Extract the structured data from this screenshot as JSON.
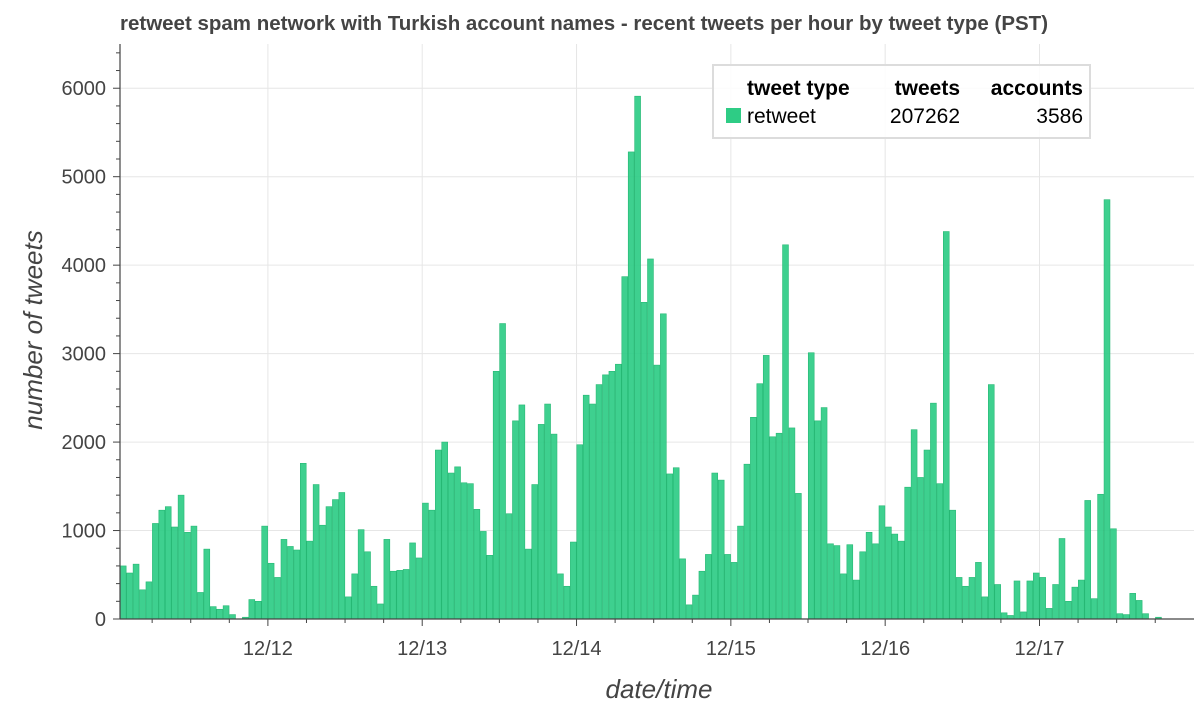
{
  "chart_data": {
    "type": "bar",
    "title": "retweet spam network with Turkish account names - recent tweets per hour by tweet type (PST)",
    "xlabel": "date/time",
    "ylabel": "number of tweets",
    "ylim": [
      0,
      6500
    ],
    "yticks": [
      "0",
      "1000",
      "2000",
      "3000",
      "4000",
      "5000",
      "6000"
    ],
    "xticks": [
      "12/12",
      "12/13",
      "12/14",
      "12/15",
      "12/16",
      "12/17"
    ],
    "grid": true,
    "legend_position": "top-right",
    "legend": {
      "headers": [
        "tweet type",
        "tweets",
        "accounts"
      ],
      "rows": [
        {
          "type": "retweet",
          "tweets": "207262",
          "accounts": "3586",
          "color": "#2ecc85"
        }
      ]
    },
    "bar_color": "#2ecc85",
    "x_start": "12/11 01:00",
    "x_interval": "1 hour",
    "series": [
      {
        "name": "retweet",
        "values": [
          600,
          520,
          620,
          330,
          420,
          1080,
          1230,
          1270,
          1040,
          1400,
          980,
          1050,
          300,
          790,
          140,
          110,
          150,
          50,
          0,
          20,
          220,
          200,
          1050,
          630,
          470,
          900,
          820,
          780,
          1760,
          880,
          1520,
          1060,
          1270,
          1350,
          1430,
          250,
          510,
          1010,
          760,
          370,
          170,
          900,
          540,
          550,
          560,
          860,
          690,
          1310,
          1230,
          1910,
          2000,
          1650,
          1720,
          1540,
          1530,
          1240,
          990,
          720,
          2800,
          3340,
          1190,
          2240,
          2420,
          790,
          1520,
          2200,
          2430,
          2090,
          510,
          370,
          870,
          1970,
          2530,
          2430,
          2650,
          2760,
          2800,
          2880,
          3870,
          5280,
          5910,
          3580,
          4070,
          2870,
          3450,
          1640,
          1710,
          680,
          160,
          270,
          540,
          730,
          1650,
          1570,
          730,
          640,
          1050,
          1750,
          2280,
          2660,
          2980,
          2060,
          2100,
          4230,
          2160,
          1420,
          0,
          3010,
          2240,
          2390,
          850,
          830,
          510,
          840,
          440,
          760,
          980,
          850,
          1280,
          1040,
          960,
          880,
          1490,
          2140,
          1600,
          1910,
          2440,
          1530,
          4380,
          1230,
          470,
          370,
          470,
          640,
          250,
          2650,
          390,
          70,
          40,
          430,
          80,
          430,
          520,
          470,
          120,
          390,
          910,
          200,
          360,
          440,
          1340,
          230,
          1410,
          4740,
          1020,
          60,
          50,
          290,
          210,
          60,
          0,
          20,
          0
        ]
      }
    ]
  }
}
